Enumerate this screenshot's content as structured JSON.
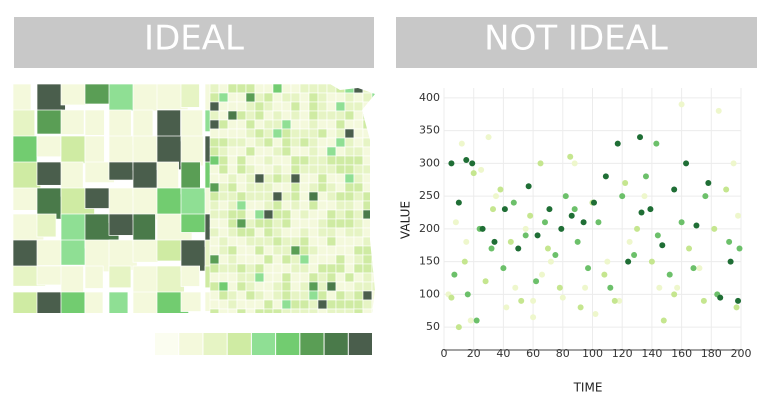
{
  "chart_data": [
    {
      "type": "map",
      "title": "IDEAL",
      "colors": [
        "#fbfdf0",
        "#f4f9dc",
        "#e6f4c4",
        "#cfeba3",
        "#8fdf94",
        "#72cc70",
        "#5a9e55",
        "#4a7a4a",
        "#4a5e4c"
      ]
    },
    {
      "type": "scatter",
      "title": "NOT IDEAL",
      "xlabel": "TIME",
      "ylabel": "VALUE",
      "xlim": [
        0,
        200
      ],
      "ylim": [
        15,
        415
      ],
      "xticks": [
        0,
        20,
        40,
        60,
        80,
        100,
        120,
        140,
        160,
        180,
        200
      ],
      "yticks": [
        50,
        100,
        150,
        200,
        250,
        300,
        350,
        400
      ],
      "grid": true,
      "series": [
        {
          "color": "#eef7cc",
          "x": [
            3,
            8,
            12,
            18,
            25,
            30,
            35,
            42,
            48,
            55,
            60,
            66,
            72,
            80,
            88,
            95,
            102,
            110,
            118,
            125,
            135,
            145,
            160,
            172,
            185,
            195,
            198,
            157,
            60,
            15
          ],
          "values": [
            100,
            210,
            330,
            60,
            290,
            340,
            250,
            80,
            110,
            200,
            90,
            130,
            150,
            95,
            300,
            110,
            70,
            150,
            90,
            180,
            250,
            110,
            390,
            140,
            380,
            300,
            220,
            110,
            65,
            180
          ]
        },
        {
          "color": "#c5e68f",
          "x": [
            5,
            14,
            20,
            28,
            38,
            45,
            52,
            58,
            65,
            70,
            78,
            85,
            92,
            100,
            108,
            115,
            122,
            130,
            140,
            148,
            155,
            165,
            175,
            182,
            190,
            197,
            10,
            33
          ],
          "values": [
            95,
            150,
            285,
            120,
            260,
            180,
            90,
            220,
            300,
            170,
            110,
            310,
            80,
            240,
            130,
            90,
            270,
            200,
            150,
            60,
            100,
            170,
            90,
            200,
            260,
            80,
            50,
            230
          ]
        },
        {
          "color": "#6cc06a",
          "x": [
            7,
            16,
            24,
            32,
            40,
            47,
            55,
            62,
            68,
            75,
            82,
            90,
            97,
            104,
            112,
            120,
            128,
            136,
            144,
            152,
            160,
            168,
            176,
            184,
            192,
            199,
            22,
            88,
            143
          ],
          "values": [
            130,
            100,
            200,
            170,
            140,
            240,
            190,
            120,
            210,
            160,
            250,
            180,
            140,
            210,
            110,
            250,
            160,
            280,
            190,
            130,
            210,
            140,
            250,
            100,
            180,
            170,
            60,
            230,
            330
          ]
        },
        {
          "color": "#1f6e35",
          "x": [
            5,
            10,
            19,
            26,
            34,
            41,
            50,
            57,
            63,
            71,
            79,
            86,
            94,
            101,
            109,
            117,
            124,
            133,
            139,
            147,
            155,
            163,
            170,
            178,
            186,
            193,
            198,
            15,
            132
          ],
          "values": [
            300,
            240,
            300,
            200,
            180,
            230,
            170,
            265,
            190,
            230,
            200,
            220,
            210,
            240,
            280,
            330,
            150,
            225,
            230,
            175,
            260,
            300,
            205,
            270,
            95,
            150,
            90,
            305,
            340
          ]
        }
      ]
    }
  ]
}
